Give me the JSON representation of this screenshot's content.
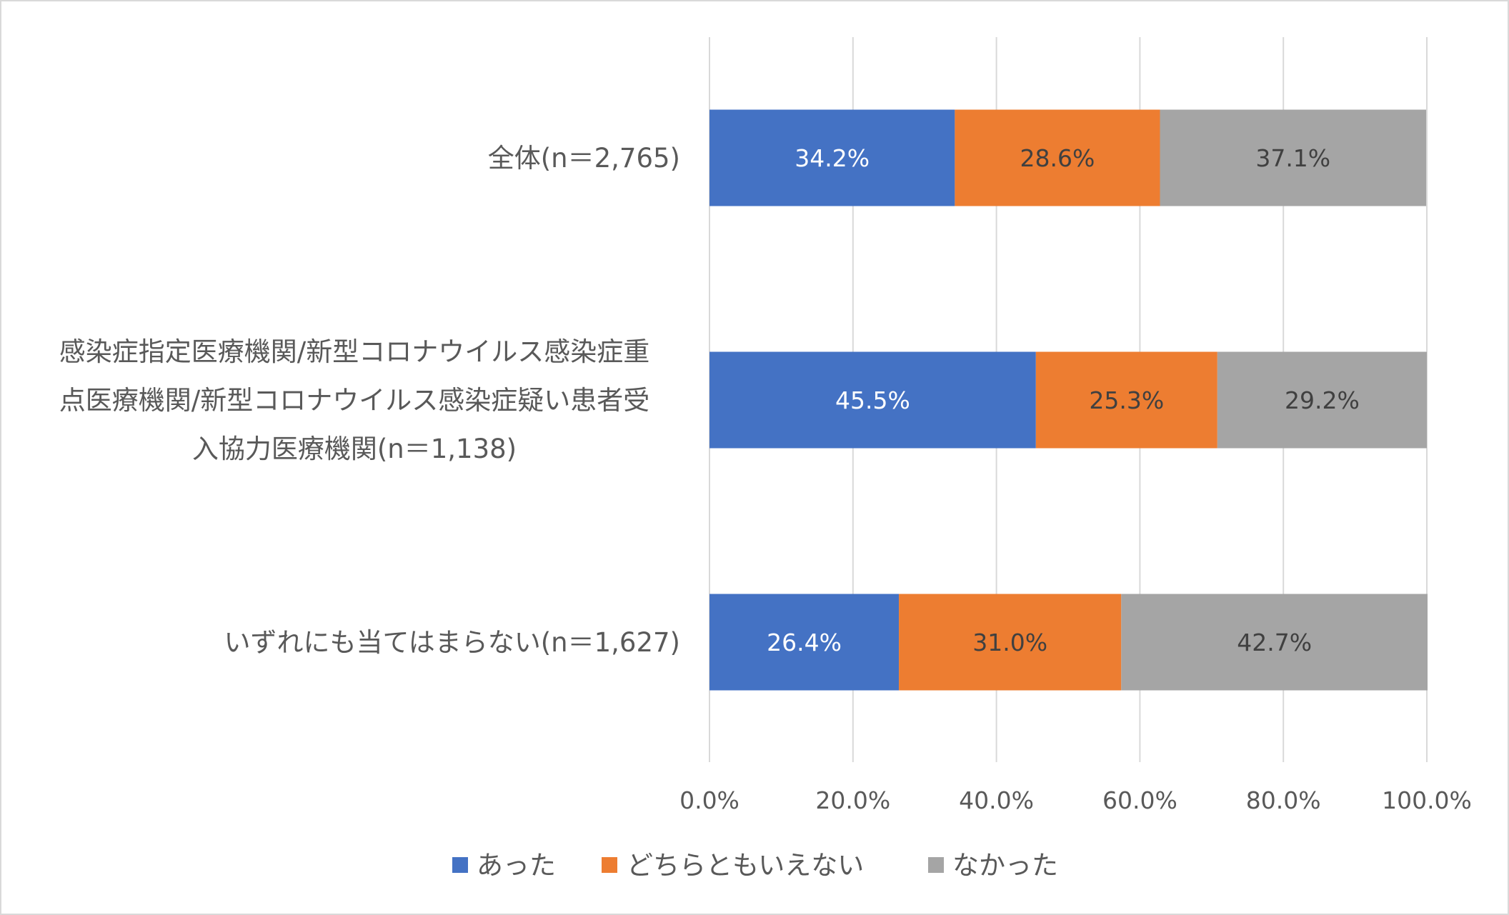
{
  "chart_data": {
    "type": "bar",
    "orientation": "horizontal",
    "stacked": true,
    "title": "",
    "xlabel": "",
    "ylabel": "",
    "xlim": [
      0,
      100
    ],
    "x_ticks": [
      "0.0%",
      "20.0%",
      "40.0%",
      "60.0%",
      "80.0%",
      "100.0%"
    ],
    "grid": "vertical",
    "legend_position": "bottom",
    "categories": [
      [
        "全体(n＝2,765)"
      ],
      [
        "感染症指定医療機関/新型コロナウイルス感染症重",
        "点医療機関/新型コロナウイルス感染症疑い患者受",
        "入協力医療機関(n＝1,138)"
      ],
      [
        "いずれにも当てはまらない(n＝1,627)"
      ]
    ],
    "series": [
      {
        "name": "あった",
        "color": "#4472c4",
        "label_color": "#ffffff",
        "values": [
          34.2,
          45.5,
          26.4
        ],
        "labels": [
          "34.2%",
          "45.5%",
          "26.4%"
        ]
      },
      {
        "name": "どちらともいえない",
        "color": "#ed7d31",
        "label_color": "#404040",
        "values": [
          28.6,
          25.3,
          31.0
        ],
        "labels": [
          "28.6%",
          "25.3%",
          "31.0%"
        ]
      },
      {
        "name": "なかった",
        "color": "#a5a5a5",
        "label_color": "#404040",
        "values": [
          37.1,
          29.2,
          42.7
        ],
        "labels": [
          "37.1%",
          "29.2%",
          "42.7%"
        ]
      }
    ]
  }
}
